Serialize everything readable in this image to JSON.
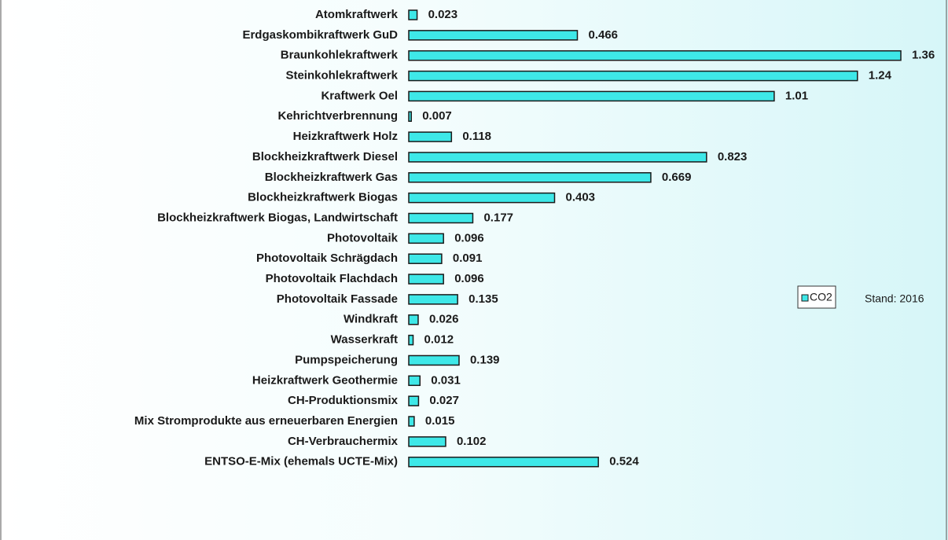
{
  "chart_data": {
    "type": "bar",
    "orientation": "horizontal",
    "categories": [
      "Atomkraftwerk",
      "Erdgaskombikraftwerk GuD",
      "Braunkohlekraftwerk",
      "Steinkohlekraftwerk",
      "Kraftwerk Oel",
      "Kehrichtverbrennung",
      "Heizkraftwerk Holz",
      "Blockheizkraftwerk Diesel",
      "Blockheizkraftwerk Gas",
      "Blockheizkraftwerk Biogas",
      "Blockheizkraftwerk Biogas, Landwirtschaft",
      "Photovoltaik",
      "Photovoltaik Schrägdach",
      "Photovoltaik Flachdach",
      "Photovoltaik Fassade",
      "Windkraft",
      "Wasserkraft",
      "Pumpspeicherung",
      "Heizkraftwerk Geothermie",
      "CH-Produktionsmix",
      "Mix Stromprodukte aus erneuerbaren Energien",
      "CH-Verbrauchermix",
      "ENTSO-E-Mix (ehemals UCTE-Mix)"
    ],
    "series": [
      {
        "name": "CO2",
        "color": "#3ee8e8",
        "values": [
          0.023,
          0.466,
          1.36,
          1.24,
          1.01,
          0.007,
          0.118,
          0.823,
          0.669,
          0.403,
          0.177,
          0.096,
          0.091,
          0.096,
          0.135,
          0.026,
          0.012,
          0.139,
          0.031,
          0.027,
          0.015,
          0.102,
          0.524
        ]
      }
    ],
    "legend": "right",
    "annotation": "Stand: 2016"
  }
}
